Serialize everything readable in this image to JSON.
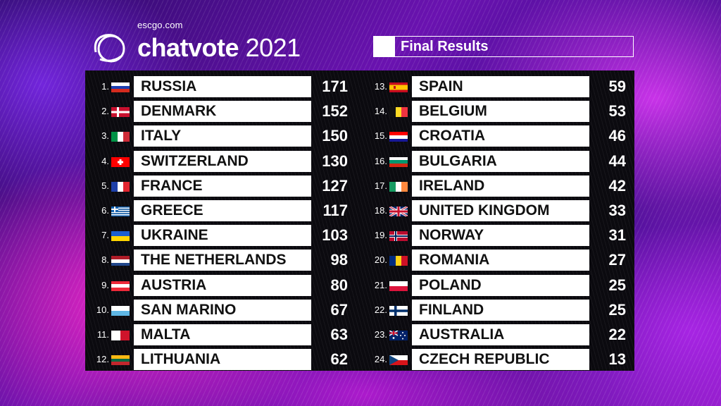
{
  "site": "escgo.com",
  "brand": {
    "name": "chatvote",
    "year": "2021"
  },
  "panel_title": "Final Results",
  "colors": {
    "board": "#0b0a0f",
    "accent_purple": "#6a12b0",
    "accent_pink": "#ff28c8"
  },
  "results": [
    {
      "rank": "1.",
      "country": "RUSSIA",
      "points": "171",
      "flag": "h:#ffffff,#1c3fb0,#d52b1e"
    },
    {
      "rank": "2.",
      "country": "DENMARK",
      "points": "152",
      "flag": "dk"
    },
    {
      "rank": "3.",
      "country": "ITALY",
      "points": "150",
      "flag": "v:#009246,#ffffff,#ce2b37"
    },
    {
      "rank": "4.",
      "country": "SWITZERLAND",
      "points": "130",
      "flag": "ch"
    },
    {
      "rank": "5.",
      "country": "FRANCE",
      "points": "127",
      "flag": "v:#1d3fa8,#ffffff,#e1252f"
    },
    {
      "rank": "6.",
      "country": "GREECE",
      "points": "117",
      "flag": "gr"
    },
    {
      "rank": "7.",
      "country": "UKRAINE",
      "points": "103",
      "flag": "h:#1a5fd0,#ffd500"
    },
    {
      "rank": "8.",
      "country": "THE NETHERLANDS",
      "points": "98",
      "flag": "h:#ae1c28,#ffffff,#21468b"
    },
    {
      "rank": "9.",
      "country": "AUSTRIA",
      "points": "80",
      "flag": "h:#ed2939,#ffffff,#ed2939"
    },
    {
      "rank": "10.",
      "country": "SAN MARINO",
      "points": "67",
      "flag": "h:#ffffff,#5eb6e4"
    },
    {
      "rank": "11.",
      "country": "MALTA",
      "points": "63",
      "flag": "v:#ffffff,#cf142b"
    },
    {
      "rank": "12.",
      "country": "LITHUANIA",
      "points": "62",
      "flag": "h:#fdb913,#006a44,#c1272d"
    },
    {
      "rank": "13.",
      "country": "SPAIN",
      "points": "59",
      "flag": "es"
    },
    {
      "rank": "14.",
      "country": "BELGIUM",
      "points": "53",
      "flag": "v:#111111,#fdda24,#ef3340"
    },
    {
      "rank": "15.",
      "country": "CROATIA",
      "points": "46",
      "flag": "h:#ff0000,#ffffff,#171796"
    },
    {
      "rank": "16.",
      "country": "BULGARIA",
      "points": "44",
      "flag": "h:#ffffff,#00966e,#d62612"
    },
    {
      "rank": "17.",
      "country": "IRELAND",
      "points": "42",
      "flag": "v:#169b62,#ffffff,#ff883e"
    },
    {
      "rank": "18.",
      "country": "UNITED KINGDOM",
      "points": "33",
      "flag": "uk"
    },
    {
      "rank": "19.",
      "country": "NORWAY",
      "points": "31",
      "flag": "no"
    },
    {
      "rank": "20.",
      "country": "ROMANIA",
      "points": "27",
      "flag": "v:#002b7f,#fcd116,#ce1126"
    },
    {
      "rank": "21.",
      "country": "POLAND",
      "points": "25",
      "flag": "h:#ffffff,#dc143c"
    },
    {
      "rank": "22.",
      "country": "FINLAND",
      "points": "25",
      "flag": "fi"
    },
    {
      "rank": "23.",
      "country": "AUSTRALIA",
      "points": "22",
      "flag": "au"
    },
    {
      "rank": "24.",
      "country": "CZECH REPUBLIC",
      "points": "13",
      "flag": "cz"
    }
  ]
}
